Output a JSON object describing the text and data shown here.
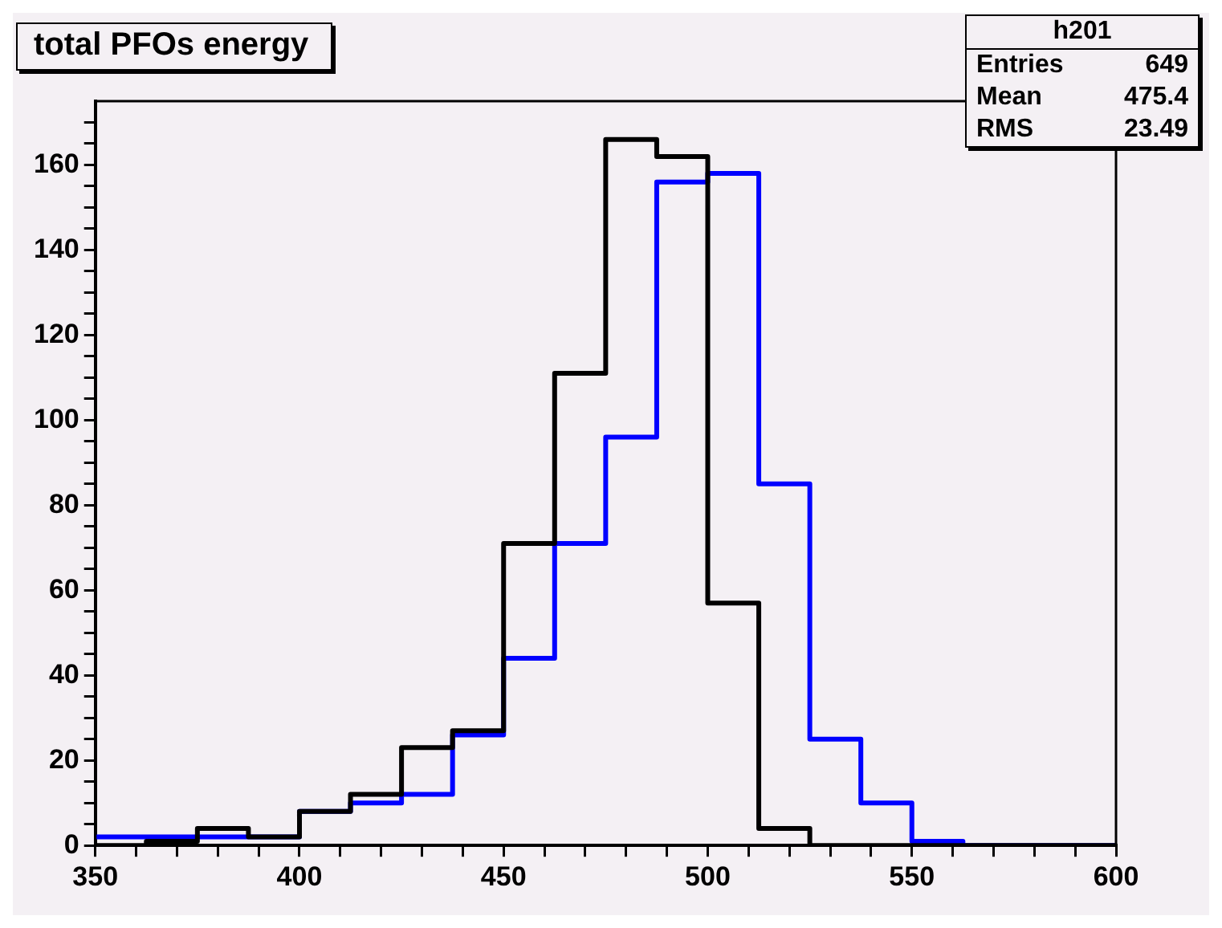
{
  "chart_data": {
    "type": "histogram",
    "title": "total PFOs energy",
    "bins": [
      350,
      362.5,
      375,
      387.5,
      400,
      412.5,
      425,
      437.5,
      450,
      462.5,
      475,
      487.5,
      500,
      512.5,
      525,
      537.5,
      550,
      562.5,
      575,
      587.5,
      600
    ],
    "series": [
      {
        "color": "#000000",
        "values": [
          0,
          1,
          4,
          2,
          8,
          12,
          23,
          27,
          71,
          111,
          166,
          162,
          57,
          4,
          0,
          0,
          0,
          0,
          0,
          0
        ]
      },
      {
        "color": "#0000ff",
        "values": [
          2,
          2,
          2,
          2,
          8,
          10,
          12,
          26,
          44,
          71,
          96,
          156,
          158,
          85,
          25,
          10,
          1,
          0,
          0,
          0
        ]
      }
    ],
    "xlim": [
      350,
      600
    ],
    "xticks": [
      350,
      {
        "value": 360,
        "label": null
      },
      {
        "value": 370,
        "label": null
      },
      {
        "value": 380,
        "label": null
      },
      {
        "value": 390,
        "label": null
      },
      400,
      {
        "value": 410,
        "label": null
      },
      {
        "value": 420,
        "label": null
      },
      {
        "value": 430,
        "label": null
      },
      {
        "value": 440,
        "label": null
      },
      450,
      {
        "value": 460,
        "label": null
      },
      {
        "value": 470,
        "label": null
      },
      {
        "value": 480,
        "label": null
      },
      {
        "value": 490,
        "label": null
      },
      500,
      {
        "value": 510,
        "label": null
      },
      {
        "value": 520,
        "label": null
      },
      {
        "value": 530,
        "label": null
      },
      {
        "value": 540,
        "label": null
      },
      550,
      {
        "value": 560,
        "label": null
      },
      {
        "value": 570,
        "label": null
      },
      {
        "value": 580,
        "label": null
      },
      {
        "value": 590,
        "label": null
      },
      600
    ],
    "ylim": [
      0,
      175
    ],
    "yticks": [
      0,
      {
        "value": 5,
        "label": null
      },
      {
        "value": 10,
        "label": null
      },
      {
        "value": 15,
        "label": null
      },
      20,
      {
        "value": 25,
        "label": null
      },
      {
        "value": 30,
        "label": null
      },
      {
        "value": 35,
        "label": null
      },
      40,
      {
        "value": 45,
        "label": null
      },
      {
        "value": 50,
        "label": null
      },
      {
        "value": 55,
        "label": null
      },
      60,
      {
        "value": 65,
        "label": null
      },
      {
        "value": 70,
        "label": null
      },
      {
        "value": 75,
        "label": null
      },
      80,
      {
        "value": 85,
        "label": null
      },
      {
        "value": 90,
        "label": null
      },
      {
        "value": 95,
        "label": null
      },
      100,
      {
        "value": 105,
        "label": null
      },
      {
        "value": 110,
        "label": null
      },
      {
        "value": 115,
        "label": null
      },
      120,
      {
        "value": 125,
        "label": null
      },
      {
        "value": 130,
        "label": null
      },
      {
        "value": 135,
        "label": null
      },
      140,
      {
        "value": 145,
        "label": null
      },
      {
        "value": 150,
        "label": null
      },
      {
        "value": 155,
        "label": null
      },
      160,
      {
        "value": 165,
        "label": null
      },
      {
        "value": 170,
        "label": null
      }
    ],
    "annotations": [
      "h201",
      "Entries",
      "649",
      "Mean",
      "475.4",
      "RMS",
      "23.49"
    ],
    "grid": false,
    "legend": false
  }
}
